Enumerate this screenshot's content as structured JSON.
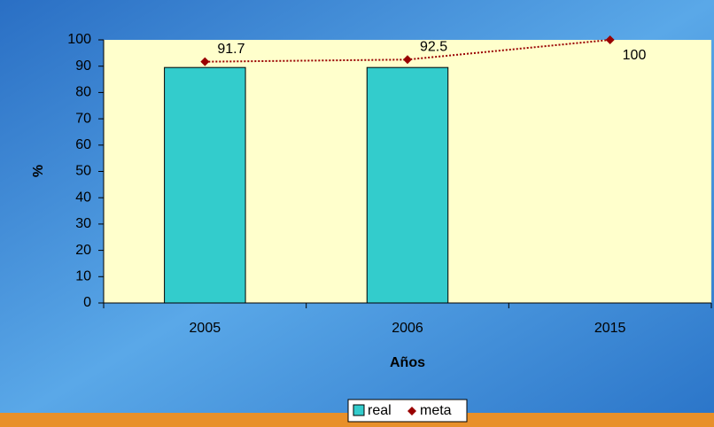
{
  "chart_data": {
    "type": "bar",
    "categories": [
      "2005",
      "2006",
      "2015"
    ],
    "series": [
      {
        "name": "real",
        "type": "bar",
        "color": "#33cccc",
        "values": [
          89.5,
          89.5,
          null
        ]
      },
      {
        "name": "meta",
        "type": "line",
        "color": "#990000",
        "values": [
          91.7,
          92.5,
          100
        ]
      }
    ],
    "xlabel": "Años",
    "ylabel": "%",
    "ylim": [
      0,
      100
    ],
    "yticks": [
      0,
      10,
      20,
      30,
      40,
      50,
      60,
      70,
      80,
      90,
      100
    ],
    "legend": "bottom"
  }
}
